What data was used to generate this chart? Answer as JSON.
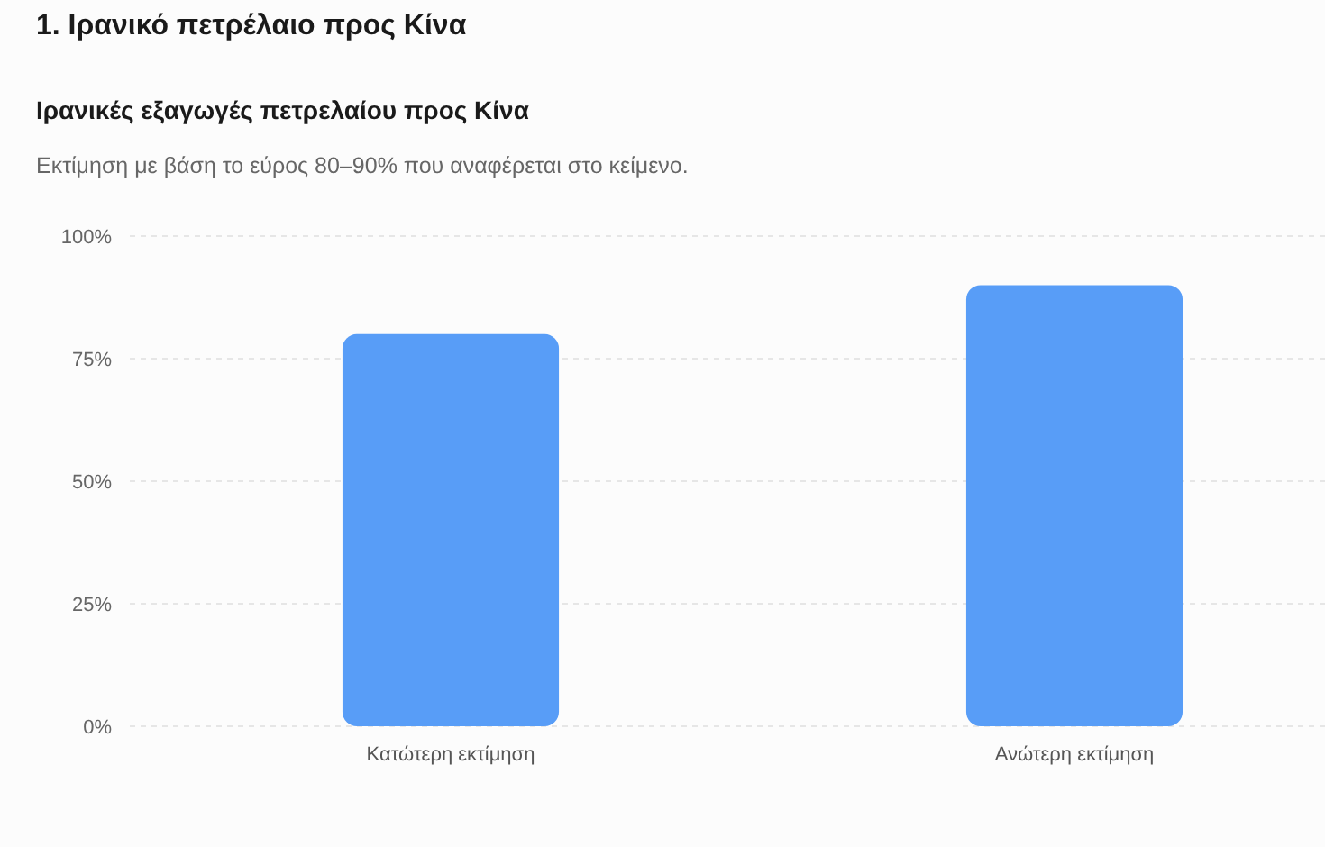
{
  "chart_data": {
    "type": "bar",
    "title": "Ιρανικές εξαγωγές πετρελαίου προς Κίνα",
    "subtitle": "Εκτίμηση με βάση το εύρος 80–90% που αναφέρεται στο κείμενο.",
    "annotations": [
      "1. Ιρανικό πετρέλαιο προς Κίνα"
    ],
    "categories": [
      "Κατώτερη εκτίμηση",
      "Ανώτερη εκτίμηση"
    ],
    "values": [
      80,
      90
    ],
    "color": "#589df7",
    "ylim": [
      0,
      100
    ],
    "yticks": [
      {
        "value": 0,
        "label": "0%"
      },
      {
        "value": 25,
        "label": "25%"
      },
      {
        "value": 50,
        "label": "50%"
      },
      {
        "value": 75,
        "label": "75%"
      },
      {
        "value": 100,
        "label": "100%"
      }
    ],
    "grid": "y"
  }
}
